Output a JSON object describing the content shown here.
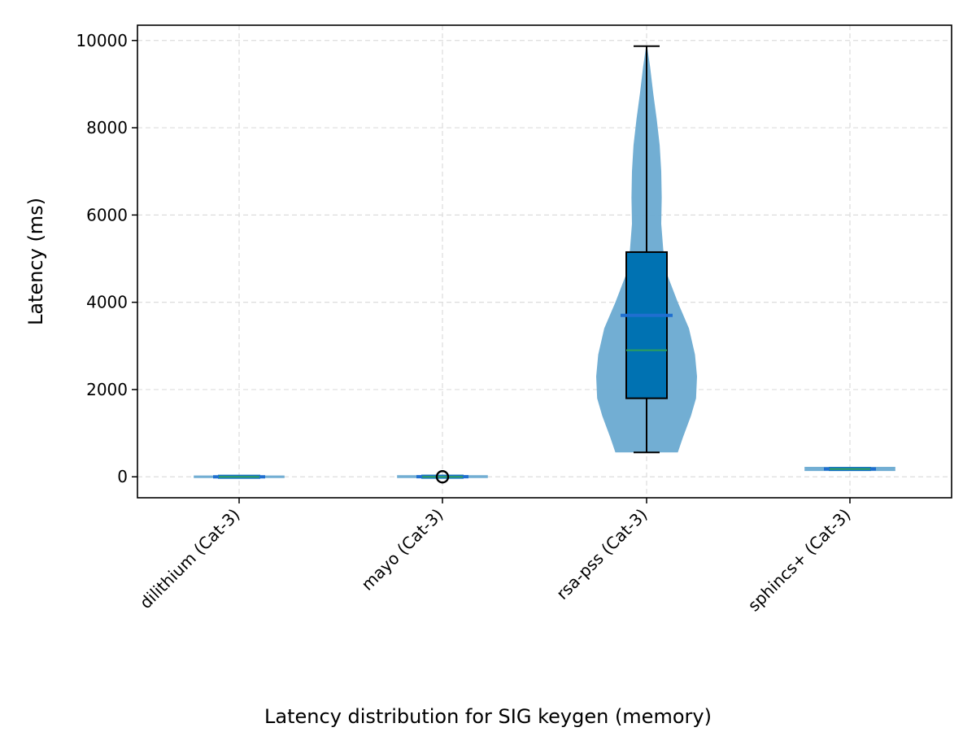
{
  "chart_data": {
    "type": "violin+box",
    "xlabel": "Latency distribution for SIG keygen (memory)",
    "ylabel": "Latency (ms)",
    "ylim": [
      -480,
      10350
    ],
    "yticks": [
      0,
      2000,
      4000,
      6000,
      8000,
      10000
    ],
    "grid": true,
    "categories": [
      "dilithium (Cat-3)",
      "mayo (Cat-3)",
      "rsa-pss (Cat-3)",
      "sphincs+ (Cat-3)"
    ],
    "series": [
      {
        "category": "dilithium (Cat-3)",
        "min": 0,
        "q1": 0,
        "median": 0,
        "q3": 2,
        "max": 3,
        "mean": 1,
        "outliers": [],
        "violin_profile": [
          [
            0,
            1.0
          ],
          [
            3,
            0.6
          ]
        ]
      },
      {
        "category": "mayo (Cat-3)",
        "min": 0,
        "q1": 0,
        "median": 0,
        "q3": 5,
        "max": 10,
        "mean": 3,
        "outliers": [
          0
        ],
        "violin_profile": [
          [
            0,
            1.0
          ],
          [
            10,
            0.6
          ]
        ]
      },
      {
        "category": "rsa-pss (Cat-3)",
        "min": 560,
        "q1": 1800,
        "median": 2900,
        "q3": 5150,
        "max": 9870,
        "mean": 3700,
        "outliers": [],
        "violin_profile": [
          [
            560,
            0.62
          ],
          [
            900,
            0.72
          ],
          [
            1400,
            0.88
          ],
          [
            1800,
            0.98
          ],
          [
            2300,
            1.0
          ],
          [
            2800,
            0.96
          ],
          [
            3400,
            0.84
          ],
          [
            4000,
            0.62
          ],
          [
            4600,
            0.42
          ],
          [
            5200,
            0.33
          ],
          [
            5800,
            0.29
          ],
          [
            6400,
            0.3
          ],
          [
            7000,
            0.29
          ],
          [
            7600,
            0.26
          ],
          [
            8200,
            0.2
          ],
          [
            8800,
            0.13
          ],
          [
            9400,
            0.07
          ],
          [
            9870,
            0.01
          ]
        ]
      },
      {
        "category": "sphincs+ (Cat-3)",
        "min": 160,
        "q1": 165,
        "median": 180,
        "q3": 195,
        "max": 200,
        "mean": 180,
        "outliers": [],
        "violin_profile": [
          [
            160,
            1.0
          ],
          [
            200,
            0.8
          ]
        ]
      }
    ],
    "colors": {
      "violin": "#6aaad1",
      "box": "#0072b2",
      "median": "#2ca05a",
      "mean": "#1f6fd0",
      "grid": "#dddddd",
      "axis": "#000000"
    }
  }
}
